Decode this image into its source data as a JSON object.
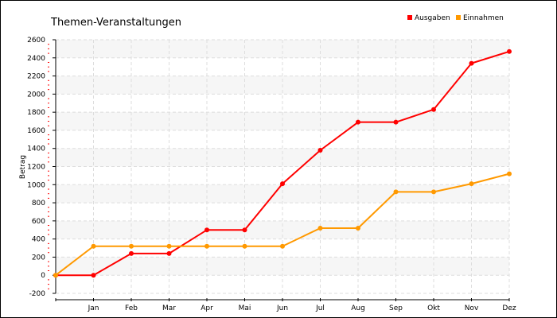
{
  "chart_data": {
    "type": "line",
    "title": "Themen-Veranstaltungen",
    "xlabel": "",
    "ylabel": "Betrag",
    "categories": [
      "",
      "Jan",
      "Feb",
      "Mar",
      "Apr",
      "Mai",
      "Jun",
      "Jul",
      "Aug",
      "Sep",
      "Okt",
      "Nov",
      "Dez"
    ],
    "ylim": [
      -200,
      2600
    ],
    "yticks": [
      -200,
      0,
      200,
      400,
      600,
      800,
      1000,
      1200,
      1400,
      1600,
      1800,
      2000,
      2200,
      2400,
      2600
    ],
    "grid": true,
    "legend": "top-right",
    "series": [
      {
        "name": "Ausgaben",
        "color": "#ff0000",
        "values": [
          0,
          0,
          240,
          240,
          500,
          500,
          1010,
          1380,
          1690,
          1690,
          1830,
          2340,
          2470
        ]
      },
      {
        "name": "Einnahmen",
        "color": "#ff9900",
        "values": [
          0,
          320,
          320,
          320,
          320,
          320,
          320,
          520,
          520,
          920,
          920,
          1010,
          1120
        ]
      }
    ]
  }
}
